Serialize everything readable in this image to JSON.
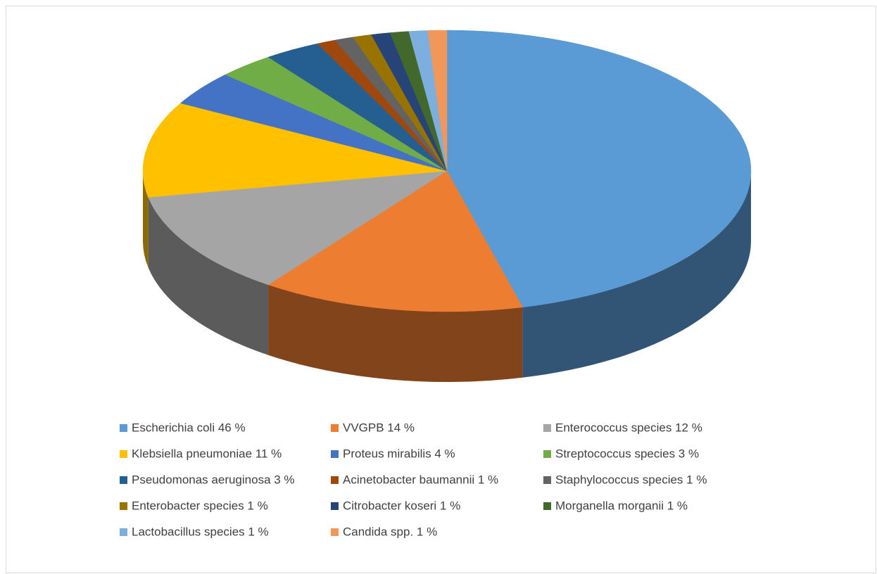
{
  "chart_data": {
    "type": "pie3d",
    "categories": [
      "Escherichia coli 46 %",
      "VVGPB 14 %",
      "Enterococcus species 12 %",
      "Klebsiella pneumoniae 11 %",
      "Proteus mirabilis 4 %",
      "Streptococcus species 3 %",
      "Pseudomonas aeruginosa 3 %",
      "Acinetobacter baumannii 1 %",
      "Staphylococcus species 1 %",
      "Enterobacter species 1 %",
      "Citrobacter koseri 1 %",
      "Morganella morganii 1 %",
      "Lactobacillus species 1 %",
      "Candida spp. 1 %"
    ],
    "values": [
      46,
      14,
      12,
      11,
      4,
      3,
      3,
      1,
      1,
      1,
      1,
      1,
      1,
      1
    ],
    "colors": [
      "#5b9bd5",
      "#ed7d31",
      "#a5a5a5",
      "#ffc000",
      "#4472c4",
      "#70ad47",
      "#255e91",
      "#9e480e",
      "#636363",
      "#997300",
      "#264478",
      "#43682b",
      "#7cafdd",
      "#f1975a"
    ],
    "legend": "bottom"
  }
}
